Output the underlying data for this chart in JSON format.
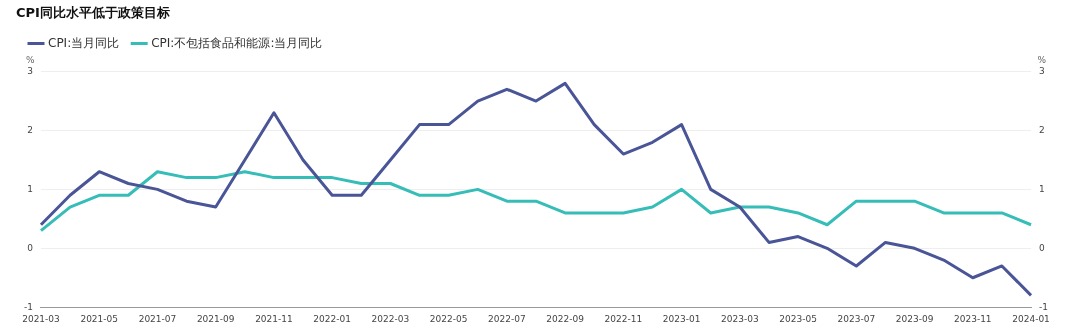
{
  "chart_data": {
    "type": "line",
    "title": "CPI同比水平低于政策目标",
    "categories": [
      "2021-03",
      null,
      "2021-05",
      null,
      "2021-07",
      null,
      "2021-09",
      null,
      "2021-11",
      null,
      "2022-01",
      null,
      "2022-03",
      null,
      "2022-05",
      null,
      "2022-07",
      null,
      "2022-09",
      null,
      "2022-11",
      null,
      "2023-01",
      null,
      "2023-03",
      null,
      "2023-05",
      null,
      "2023-07",
      null,
      "2023-09",
      null,
      "2023-11",
      null,
      "2024-01"
    ],
    "series": [
      {
        "name": "CPI:当月同比",
        "color": "#4a5597",
        "values": [
          0.4,
          0.9,
          1.3,
          1.1,
          1.0,
          0.8,
          0.7,
          1.5,
          2.3,
          1.5,
          0.9,
          0.9,
          1.5,
          2.1,
          2.1,
          2.5,
          2.7,
          2.5,
          2.8,
          2.1,
          1.6,
          1.8,
          2.1,
          1.0,
          0.7,
          0.1,
          0.2,
          0.0,
          -0.3,
          0.1,
          0.0,
          -0.2,
          -0.5,
          -0.3,
          -0.8
        ]
      },
      {
        "name": "CPI:不包括食品和能源:当月同比",
        "color": "#36bdb8",
        "values": [
          0.3,
          0.7,
          0.9,
          0.9,
          1.3,
          1.2,
          1.2,
          1.3,
          1.2,
          1.2,
          1.2,
          1.1,
          1.1,
          0.9,
          0.9,
          1.0,
          0.8,
          0.8,
          0.6,
          0.6,
          0.6,
          0.7,
          1.0,
          0.6,
          0.7,
          0.7,
          0.6,
          0.4,
          0.8,
          0.8,
          0.8,
          0.6,
          0.6,
          0.6,
          0.4
        ]
      }
    ],
    "ylabel": "%",
    "y2label": "%",
    "ylim": [
      -1,
      3
    ],
    "yticks": [
      -1,
      0,
      1,
      2,
      3
    ],
    "y2lim": [
      -1,
      3
    ],
    "y2ticks": [
      -1,
      0,
      1,
      2,
      3
    ],
    "grid": "y",
    "legend": "top left",
    "marker": "none",
    "line_style": "solid"
  }
}
